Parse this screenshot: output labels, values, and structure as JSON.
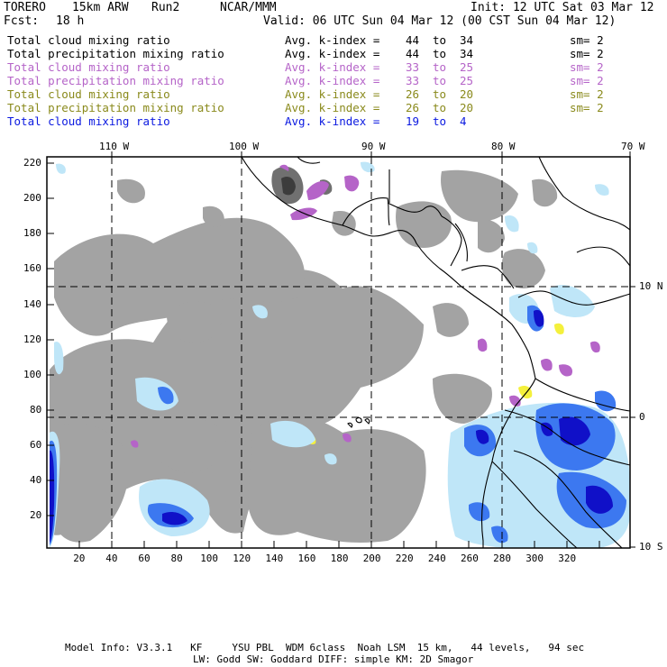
{
  "header": {
    "model": "TORERO",
    "resolution": "15km ARW",
    "run": "Run2",
    "org": "NCAR/MMM",
    "init": "Init: 12 UTC Sat 03 Mar 12",
    "fcst_label": "Fcst:",
    "fcst_value": "18 h",
    "valid": "Valid: 06 UTC Sun 04 Mar 12 (00 CST Sun 04 Mar 12)"
  },
  "legend": [
    {
      "field": "Total cloud mixing ratio",
      "kindex_label": "Avg. k-index =",
      "from": "44",
      "to_word": "to",
      "to": "34",
      "sm": "sm= 2",
      "color": "#000000"
    },
    {
      "field": "Total precipitation mixing ratio",
      "kindex_label": "Avg. k-index =",
      "from": "44",
      "to_word": "to",
      "to": "34",
      "sm": "sm= 2",
      "color": "#000000"
    },
    {
      "field": "Total cloud mixing ratio",
      "kindex_label": "Avg. k-index =",
      "from": "33",
      "to_word": "to",
      "to": "25",
      "sm": "sm= 2",
      "color": "#b564c8"
    },
    {
      "field": "Total precipitation mixing ratio",
      "kindex_label": "Avg. k-index =",
      "from": "33",
      "to_word": "to",
      "to": "25",
      "sm": "sm= 2",
      "color": "#b564c8"
    },
    {
      "field": "Total cloud mixing ratio",
      "kindex_label": "Avg. k-index =",
      "from": "26",
      "to_word": "to",
      "to": "20",
      "sm": "sm= 2",
      "color": "#8a8a1c"
    },
    {
      "field": "Total precipitation mixing ratio",
      "kindex_label": "Avg. k-index =",
      "from": "26",
      "to_word": "to",
      "to": "20",
      "sm": "sm= 2",
      "color": "#8a8a1c"
    },
    {
      "field": "Total cloud mixing ratio",
      "kindex_label": "Avg. k-index =",
      "from": "19",
      "to_word": "to",
      "to": "4",
      "sm": "",
      "color": "#0b19e0"
    }
  ],
  "axes": {
    "top_lon_labels": [
      "110 W",
      "100 W",
      "90 W",
      "80 W",
      "70 W"
    ],
    "right_lat_labels": [
      "10 N",
      "0",
      "10 S"
    ],
    "left_ticks": [
      "220",
      "200",
      "180",
      "160",
      "140",
      "120",
      "100",
      "80",
      "60",
      "40",
      "20"
    ],
    "bottom_ticks": [
      "20",
      "40",
      "60",
      "80",
      "100",
      "120",
      "140",
      "160",
      "180",
      "200",
      "220",
      "240",
      "260",
      "280",
      "300",
      "320"
    ]
  },
  "footer": {
    "line1": "Model Info: V3.3.1   KF     YSU PBL  WDM 6class  Noah LSM  15 km,   44 levels,   94 sec",
    "line2": "LW: Godd SW: Goddard DIFF: simple KM: 2D Smagor"
  },
  "colors": {
    "grey_cloud": "#a3a3a3",
    "dark_cloud": "#3c3c3c",
    "purple": "#b564c8",
    "yellow": "#f4f03c",
    "blue_light": "#bfe6f8",
    "blue_mid": "#3c78f0",
    "blue_dark": "#1010c8"
  }
}
